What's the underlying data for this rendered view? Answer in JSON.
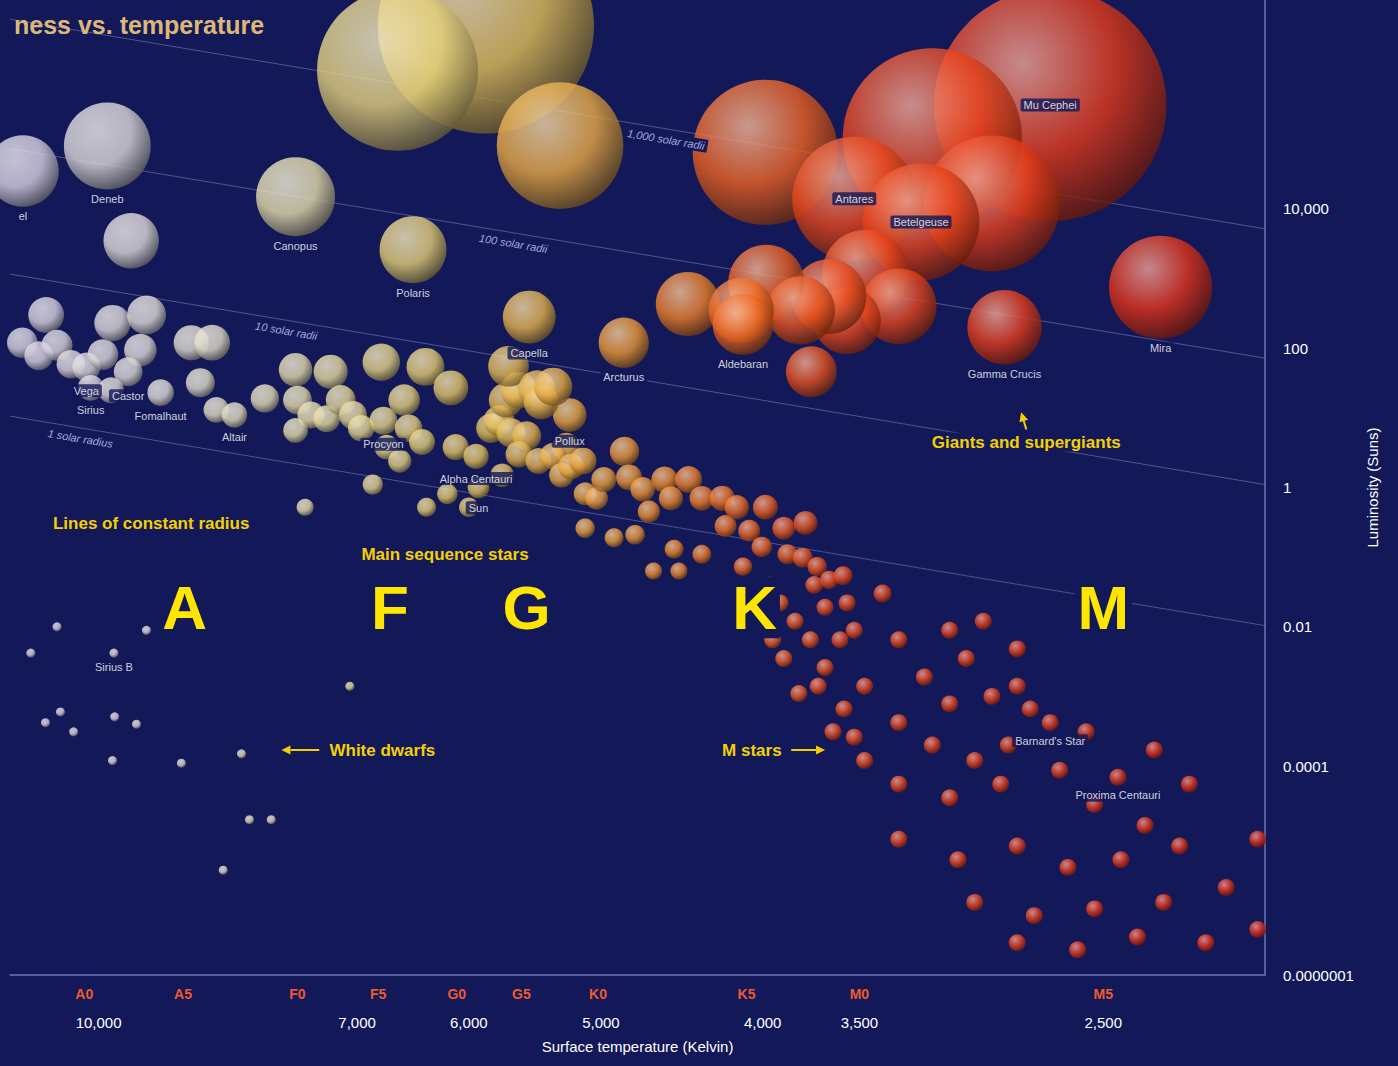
{
  "chart_data": {
    "type": "scatter",
    "title": "ness vs. temperature",
    "xlabel": "Surface temperature (Kelvin)",
    "ylabel": "Luminosity (Suns)",
    "log": true,
    "grid": false,
    "xlim": [
      11300,
      2000
    ],
    "xticks": [
      {
        "value": 10000,
        "label": "10,000"
      },
      {
        "value": 7000,
        "label": "7,000"
      },
      {
        "value": 6000,
        "label": "6,000"
      },
      {
        "value": 5000,
        "label": "5,000"
      },
      {
        "value": 4000,
        "label": "4,000"
      },
      {
        "value": 3500,
        "label": "3,500"
      },
      {
        "value": 2500,
        "label": "2,500"
      }
    ],
    "x2lim": [
      11300,
      2000
    ],
    "x2ticks": [
      {
        "value": 10200,
        "label": "A0"
      },
      {
        "value": 8900,
        "label": "A5"
      },
      {
        "value": 7600,
        "label": "F0"
      },
      {
        "value": 6800,
        "label": "F5"
      },
      {
        "value": 6100,
        "label": "G0"
      },
      {
        "value": 5580,
        "label": "G5"
      },
      {
        "value": 5020,
        "label": "K0"
      },
      {
        "value": 4090,
        "label": "K5"
      },
      {
        "value": 3500,
        "label": "M0"
      },
      {
        "value": 2500,
        "label": "M5"
      }
    ],
    "ylim": [
      1e-07,
      10000000
    ],
    "yticks": [
      {
        "value": 10000,
        "label": "10,000"
      },
      100,
      1,
      0.01,
      0.0001,
      {
        "value": 1e-07,
        "label": "0.0000001"
      }
    ],
    "series": [
      {
        "marker": "sphere",
        "x": [
          2690,
          5860,
          3165,
          6620,
          3985,
          5290,
          2915,
          3525,
          3215,
          11100,
          9880,
          7620,
          2310,
          6480,
          2865,
          3470,
          3315,
          3560,
          3650,
          3980,
          4435,
          3795,
          4120,
          4110,
          3740,
          9560,
          5520,
          4845,
          5220
        ],
        "values": [
          310000,
          4300000,
          105000,
          980000,
          65000,
          81000,
          12000,
          14000,
          6500,
          35000,
          80000,
          15000,
          750,
          2600,
          200,
          1200,
          400,
          250,
          550,
          870,
          430,
          350,
          350,
          220,
          46,
          3500,
          280,
          120,
          11
        ],
        "labels": [
          "Mu Cephei",
          null,
          null,
          null,
          null,
          null,
          null,
          "Antares",
          "Betelgeuse",
          "el",
          "Deneb",
          "Canopus",
          "Mira",
          "Polaris",
          "Gamma Crucis",
          null,
          null,
          null,
          null,
          null,
          null,
          null,
          null,
          "Aldebaran",
          null,
          null,
          "Capella",
          "Arcturus",
          "Pollux"
        ]
      },
      {
        "marker": "sphere",
        "x": [
          11110,
          10750,
          10860,
          10590,
          10390,
          10170,
          9940,
          9810,
          9360,
          9440,
          9600,
          10110,
          9830,
          9180,
          8800,
          8550,
          8690,
          8500,
          8290,
          7950,
          7620,
          7260,
          7600,
          7460,
          7620,
          7300,
          7160,
          7040,
          6960,
          6770,
          6750,
          6720,
          6560,
          6520,
          6370,
          6400,
          6600,
          6850,
          7520,
          6360,
          6180,
          6110,
          6150,
          5940,
          5920,
          6000,
          5820,
          5755,
          5700,
          5600,
          5660,
          5540,
          5600,
          5730,
          5680,
          5460,
          5430,
          5340,
          5245,
          5450,
          5340,
          5280,
          5210,
          5125,
          5110,
          5030,
          5110,
          4980,
          4840,
          4810,
          4720,
          4910,
          4770,
          4680,
          4580,
          4540,
          4430,
          4520,
          4650,
          4490,
          4350,
          4350,
          4230,
          4210,
          4145,
          4075,
          3985,
          4005,
          4110,
          3965,
          3885,
          3770,
          3865,
          3785,
          3710,
          3905,
          3825,
          3725,
          3650,
          3580,
          3390,
          3560,
          3670,
          3745,
          3805,
          3670,
          3595,
          3525,
          3315,
          3090,
          3020,
          2815,
          3200,
          3475,
          3575,
          3525,
          3315,
          3090,
          2915,
          2765,
          2690,
          2450,
          3475,
          3165,
          2985,
          2850,
          3315,
          3090,
          2880,
          2655,
          2530,
          2360,
          3315,
          3055,
          2815,
          2625,
          2440,
          2250,
          2985,
          2750,
          2530,
          2300,
          2110,
          2815,
          2590,
          2385,
          2170,
          2020,
          4035,
          3945,
          3885,
          3705,
          3630,
          2950,
          2815,
          2560,
          2330,
          2220,
          2020
        ],
        "values": [
          120,
          300,
          78,
          110,
          59,
          54,
          81,
          230,
          300,
          94,
          46,
          27,
          25,
          23,
          120,
          120,
          32,
          13,
          11,
          19,
          49,
          46,
          18,
          11,
          6.6,
          9.7,
          18,
          11,
          7.1,
          63,
          9.1,
          3.8,
          18,
          7.1,
          54,
          4.5,
          2.4,
          1.1,
          0.52,
          0.52,
          0.81,
          3.8,
          27,
          2.8,
          1,
          0.52,
          7.1,
          9.1,
          18,
          25,
          6.1,
          5.5,
          3.0,
          1.5,
          55,
          26,
          17,
          28,
          3.8,
          2.4,
          2.8,
          1.5,
          2.0,
          2.4,
          0.81,
          0.7,
          0.26,
          1.3,
          3.3,
          1.4,
          0.94,
          0.19,
          0.21,
          0.45,
          1.3,
          0.7,
          1.3,
          0.13,
          0.063,
          0.063,
          0.11,
          0.7,
          0.7,
          0.28,
          0.52,
          0.24,
          0.52,
          0.14,
          0.073,
          0.04,
          0.26,
          0.31,
          0.11,
          0.098,
          0.073,
          0.022,
          0.012,
          0.04,
          0.047,
          0.054,
          0.03,
          0.022,
          0.019,
          0.0065,
          0.0011,
          0.0026,
          0.0065,
          0.0089,
          0.0065,
          0.0089,
          0.0035,
          0.0048,
          0.0019,
          0.0014,
          0.00066,
          0.00026,
          0.00042,
          0.00078,
          0.001,
          0.00066,
          0.00042,
          6.9e-05,
          0.00012,
          0.0002,
          0.00012,
          0.0002,
          5.5e-05,
          3.5e-05,
          5.5e-05,
          8.7e-05,
          2.8e-05,
          1.4e-05,
          8.9e-06,
          4.5e-06,
          7.1e-06,
          3.5e-06,
          4.5e-06,
          7.1e-06,
          1.1e-06,
          7.1e-07,
          8.9e-07,
          1.1e-06,
          1.8e-06,
          2.9e-07,
          2.3e-07,
          3.5e-07,
          2.9e-07,
          4.5e-07,
          0.022,
          0.0065,
          0.0035,
          0.0014,
          0.00031,
          0.012,
          0.0014,
          0.00031,
          0.00017,
          5.5e-05,
          8.9e-06
        ],
        "labels": [
          null,
          null,
          null,
          null,
          null,
          "Vega",
          null,
          null,
          null,
          null,
          "Castor",
          "Sirius",
          null,
          "Fomalhaut",
          null,
          null,
          null,
          null,
          "Altair",
          null,
          null,
          null,
          null,
          null,
          null,
          null,
          null,
          null,
          null,
          null,
          "Procyon",
          null,
          null,
          null,
          null,
          null,
          null,
          null,
          null,
          null,
          null,
          null,
          null,
          "Alpha Centauri",
          "Sun",
          null,
          null,
          null,
          null,
          null,
          null,
          null,
          null,
          null,
          null,
          null,
          null,
          null,
          null,
          null,
          null,
          null,
          null,
          null,
          null,
          null,
          null,
          null,
          null,
          null,
          null,
          null,
          null,
          null,
          null,
          null,
          null,
          null,
          null,
          null,
          null,
          null,
          null,
          null,
          null,
          null,
          null,
          null,
          null,
          null,
          null,
          null,
          null,
          null,
          null,
          null,
          null,
          null,
          null,
          null,
          null,
          null,
          null,
          null,
          null,
          null,
          null,
          null,
          null,
          null,
          null,
          null,
          null,
          null,
          null,
          null,
          null,
          null,
          null,
          null,
          "Barnard's Star",
          "Proxima Centauri",
          null,
          null,
          null,
          null,
          null,
          null,
          null,
          null,
          null,
          null,
          null,
          null,
          null,
          null,
          null,
          null,
          null,
          null,
          null,
          null,
          null,
          null,
          null,
          null,
          null,
          null,
          null,
          null,
          null,
          null,
          null,
          null,
          null,
          null,
          null,
          null,
          null
        ]
      },
      {
        "marker": "dot",
        "x": [
          10590,
          9360,
          10980,
          9790,
          7070,
          10760,
          10540,
          10350,
          9780,
          9490,
          9810,
          8920,
          8210,
          8120,
          7880,
          8420
        ],
        "values": [
          0.01,
          0.0089,
          0.0042,
          0.0042,
          0.0014,
          0.00042,
          0.0006,
          0.00031,
          0.00051,
          0.0004,
          0.00012,
          0.00011,
          0.00015,
          1.7e-05,
          1.7e-05,
          3.2e-06
        ],
        "labels": [
          null,
          null,
          null,
          "Sirius B",
          null,
          null,
          null,
          null,
          null,
          null,
          null,
          null,
          null,
          null,
          null,
          null
        ]
      }
    ],
    "radius_lines": [
      {
        "label": "1 solar radius",
        "x": [
          11300,
          10230,
          2000
        ],
        "y": [
          10.6,
          7.1,
          0.0104
        ]
      },
      {
        "label": "10 solar radii",
        "x": [
          11300,
          7700,
          2000
        ],
        "y": [
          1160,
          250,
          1.1
        ]
      },
      {
        "label": "100 solar radii",
        "x": [
          11300,
          5630,
          2000
        ],
        "y": [
          73000,
          4500,
          72
        ]
      },
      {
        "label": "1,000 solar radii",
        "x": [
          11300,
          4560,
          2000
        ],
        "y": [
          5300000,
          140000,
          5180
        ]
      }
    ],
    "annotations": [
      {
        "text": "Lines of constant radius",
        "x": 9300,
        "y": 0.3
      },
      {
        "text": "Main sequence stars",
        "x": 6200,
        "y": 0.11
      },
      {
        "text": "White dwarfs",
        "x": 6760,
        "y": 0.00017,
        "arrow_to": [
          7770,
          0.00017
        ]
      },
      {
        "text": "M stars",
        "x": 4060,
        "y": 0.00017,
        "arrow_to": [
          3670,
          0.00017
        ]
      },
      {
        "text": "Giants and supergiants",
        "x": 2780,
        "y": 4.5,
        "arrow_to": [
          2800,
          12
        ]
      }
    ],
    "class_letters": [
      {
        "text": "A",
        "x": 8880,
        "y": 0.019
      },
      {
        "text": "F",
        "x": 6690,
        "y": 0.019
      },
      {
        "text": "G",
        "x": 5540,
        "y": 0.019
      },
      {
        "text": "K",
        "x": 4045,
        "y": 0.019
      },
      {
        "text": "M",
        "x": 2500,
        "y": 0.019
      }
    ]
  }
}
